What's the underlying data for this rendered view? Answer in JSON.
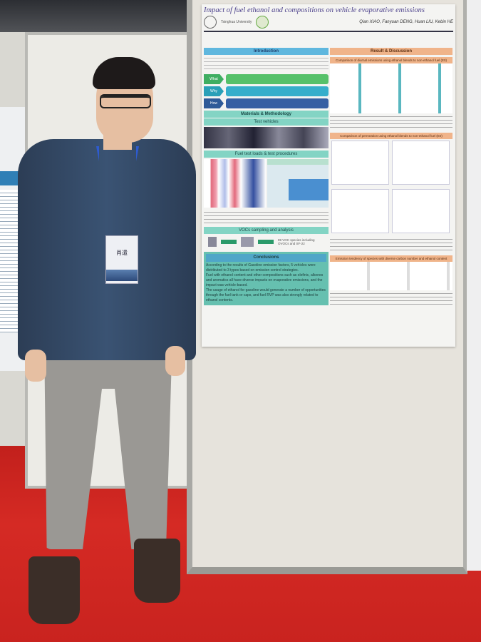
{
  "poster": {
    "title": "Impact of fuel ethanol and compositions on vehicle evaporative emissions",
    "authors": "Qian XIAO, Fanyuan DENG, Huan LIU, Kebin HE",
    "university": "Tsinghua University",
    "left_sections": {
      "introduction": "Introduction",
      "what": "What",
      "why": "Why",
      "how": "How",
      "materials": "Materials & Methodology",
      "test_vehicles": "Test vehicles",
      "fuel_test": "Fuel test loads & test procedures",
      "vocs": "VOCs sampling and analysis",
      "voc_species": "99 VOC species including OVOCs and SF-22",
      "conclusions": "Conclusions"
    },
    "conclusion_points": [
      "According to the results of Gasoline emission factors, 5 vehicles were distributed to 3 types based on emission control strategies.",
      "Fuel with ethanol content and other compositions such as olefinic, alkenes and aromatics all have diverse impacts on evaporative emissions, and the impact was vehicle-based.",
      "The usage of ethanol for gasoline would generate a number of opportunities through the fuel tank or caps, and fuel RVP was also strongly related to ethanol contents."
    ],
    "right_sections": {
      "results": "Result & Discussion",
      "comparison1": "Comparison of diurnal emissions using ethanol blends to non-ethanol fuel (E0)",
      "comparison2": "Comparison of permeation using ethanol blends to non-ethanol fuel (E0)",
      "emission_tendency": "Emission tendency of species with diverse carbon number and ethanol content"
    }
  },
  "badge": {
    "name": "肖遣"
  }
}
